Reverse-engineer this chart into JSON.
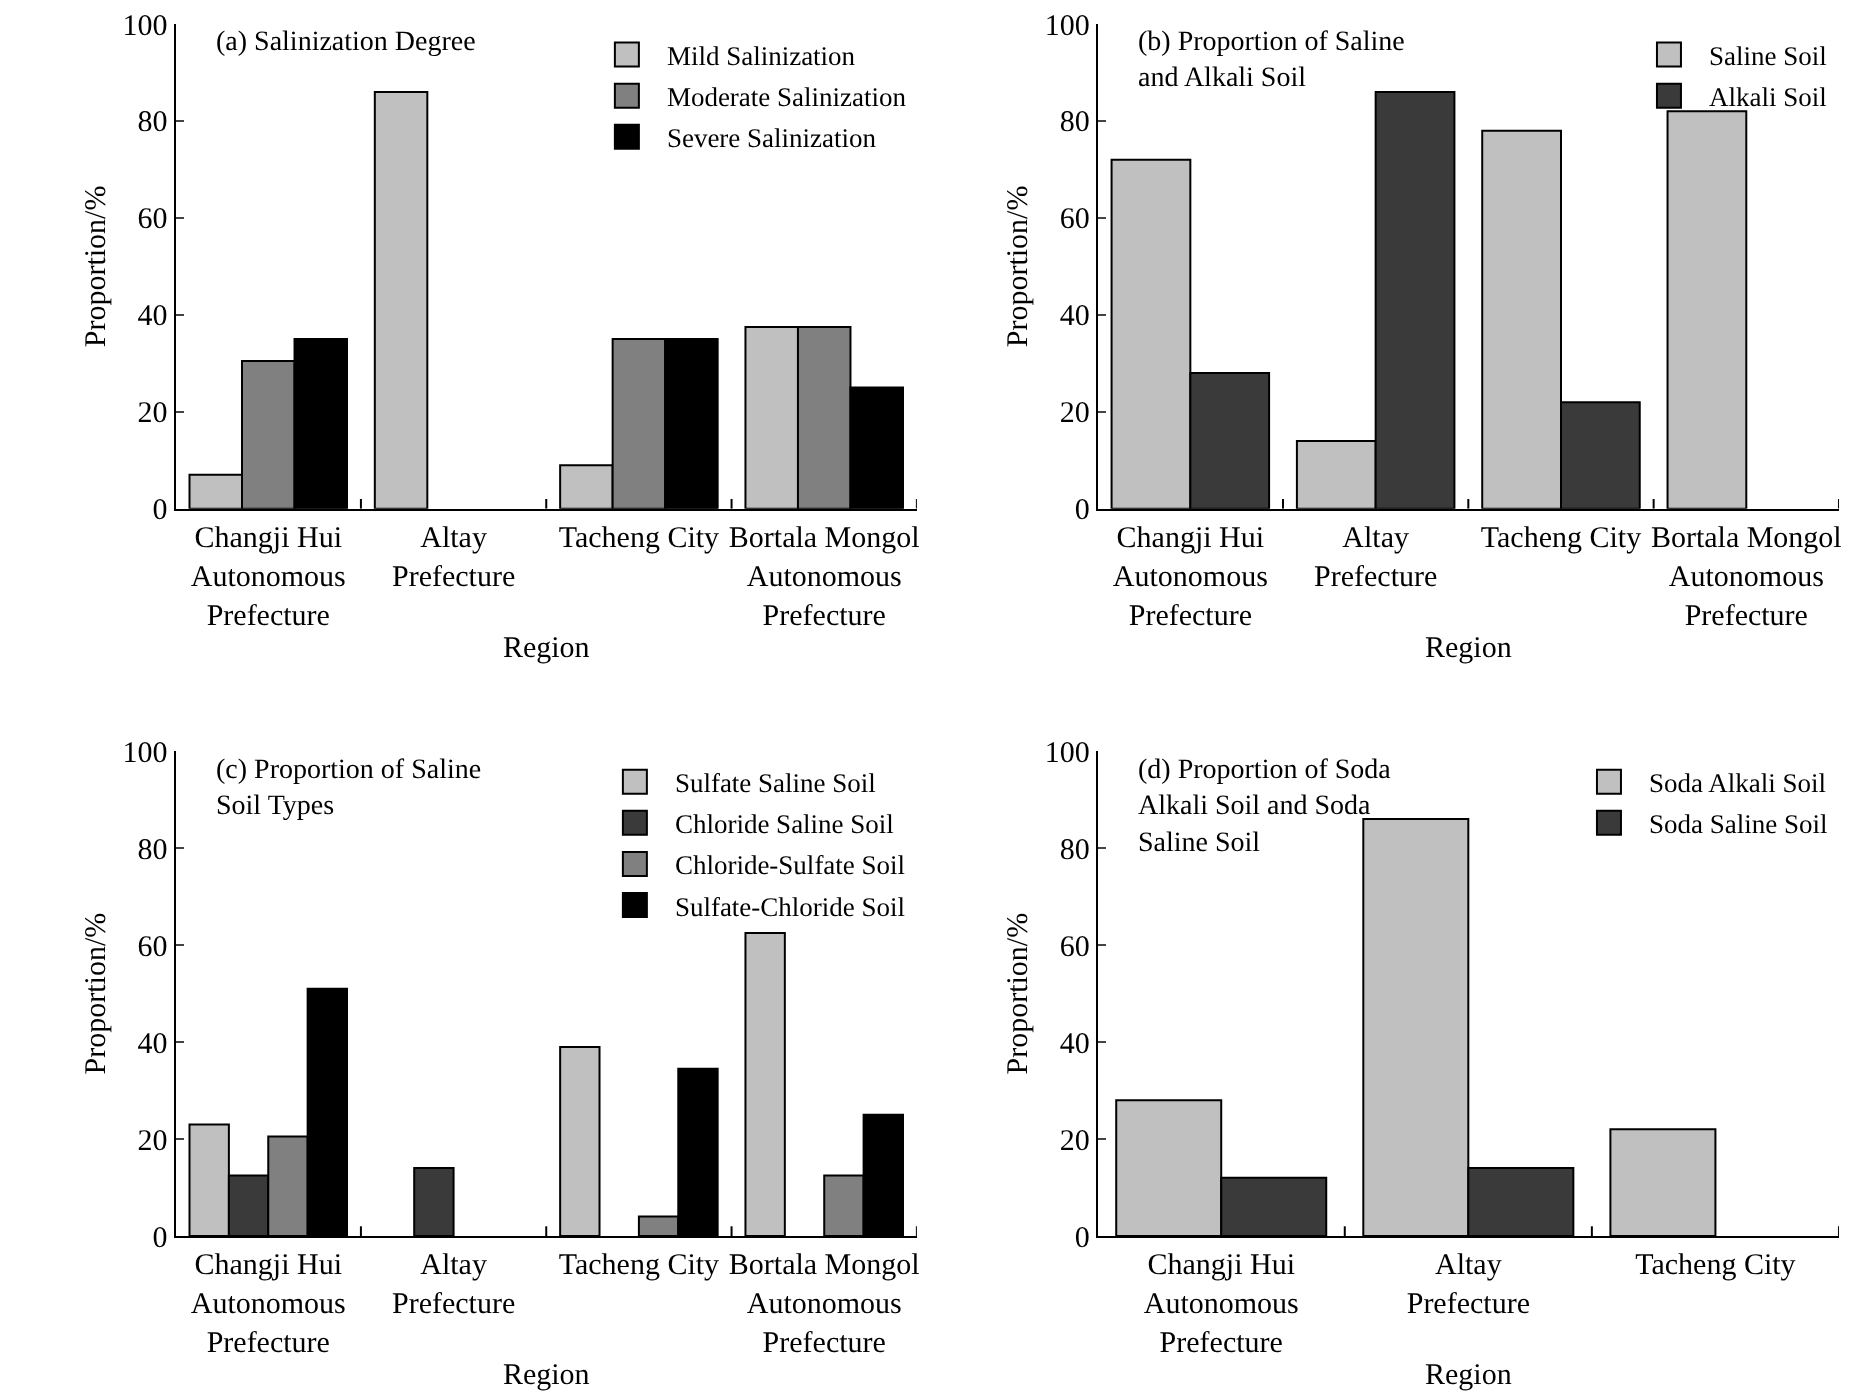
{
  "chart_data": [
    {
      "type": "bar",
      "title": "(a) Salinization Degree",
      "xlabel": "Region",
      "ylabel": "Proportion/%",
      "categories": [
        "Changji Hui Autonomous Prefecture",
        "Altay Prefecture",
        "Tacheng City",
        "Bortala Mongol Autonomous Prefecture"
      ],
      "ylim": [
        0,
        100
      ],
      "yticks": [
        0,
        20,
        40,
        60,
        80,
        100
      ],
      "grid": false,
      "legend": "top right",
      "series": [
        {
          "name": "Mild Salinization",
          "color": "#c0c0c0",
          "values": [
            7,
            86,
            9,
            37.5
          ]
        },
        {
          "name": "Moderate Salinization",
          "color": "#808080",
          "values": [
            30.5,
            null,
            35,
            37.5
          ]
        },
        {
          "name": "Severe Salinization",
          "color": "#000000",
          "values": [
            35,
            null,
            35,
            25
          ]
        }
      ]
    },
    {
      "type": "bar",
      "title": "(b) Proportion of Saline and Alkali Soil",
      "xlabel": "Region",
      "ylabel": "Proportion/%",
      "categories": [
        "Changji Hui Autonomous Prefecture",
        "Altay Prefecture",
        "Tacheng City",
        "Bortala Mongol Autonomous Prefecture"
      ],
      "ylim": [
        0,
        100
      ],
      "yticks": [
        0,
        20,
        40,
        60,
        80,
        100
      ],
      "grid": false,
      "legend": "top right",
      "series": [
        {
          "name": "Saline Soil",
          "color": "#c0c0c0",
          "values": [
            72,
            14,
            78,
            82
          ]
        },
        {
          "name": "Alkali Soil",
          "color": "#3a3a3a",
          "values": [
            28,
            86,
            22,
            null
          ]
        }
      ]
    },
    {
      "type": "bar",
      "title": "(c) Proportion of Saline Soil Types",
      "xlabel": "Region",
      "ylabel": "Proportion/%",
      "categories": [
        "Changji Hui Autonomous Prefecture",
        "Altay Prefecture",
        "Tacheng City",
        "Bortala Mongol Autonomous Prefecture"
      ],
      "ylim": [
        0,
        100
      ],
      "yticks": [
        0,
        20,
        40,
        60,
        80,
        100
      ],
      "grid": false,
      "legend": "top right",
      "series": [
        {
          "name": "Sulfate Saline Soil",
          "color": "#c0c0c0",
          "values": [
            23,
            null,
            39,
            62.5
          ]
        },
        {
          "name": "Chloride Saline Soil",
          "color": "#3a3a3a",
          "values": [
            12.5,
            14,
            null,
            null
          ]
        },
        {
          "name": "Chloride-Sulfate Soil",
          "color": "#808080",
          "values": [
            20.5,
            null,
            4,
            12.5
          ]
        },
        {
          "name": "Sulfate-Chloride Soil",
          "color": "#000000",
          "values": [
            51,
            null,
            34.5,
            25
          ]
        }
      ]
    },
    {
      "type": "bar",
      "title": "(d) Proportion of Soda Alkali Soil and Soda Saline Soil",
      "xlabel": "Region",
      "ylabel": "Proportion/%",
      "categories": [
        "Changji Hui Autonomous Prefecture",
        "Altay Prefecture",
        "Tacheng City"
      ],
      "ylim": [
        0,
        100
      ],
      "yticks": [
        0,
        20,
        40,
        60,
        80,
        100
      ],
      "grid": false,
      "legend": "top right",
      "series": [
        {
          "name": "Soda Alkali Soil",
          "color": "#c0c0c0",
          "values": [
            28,
            86,
            22
          ]
        },
        {
          "name": "Soda Saline Soil",
          "color": "#3a3a3a",
          "values": [
            12,
            14,
            null
          ]
        }
      ]
    }
  ]
}
